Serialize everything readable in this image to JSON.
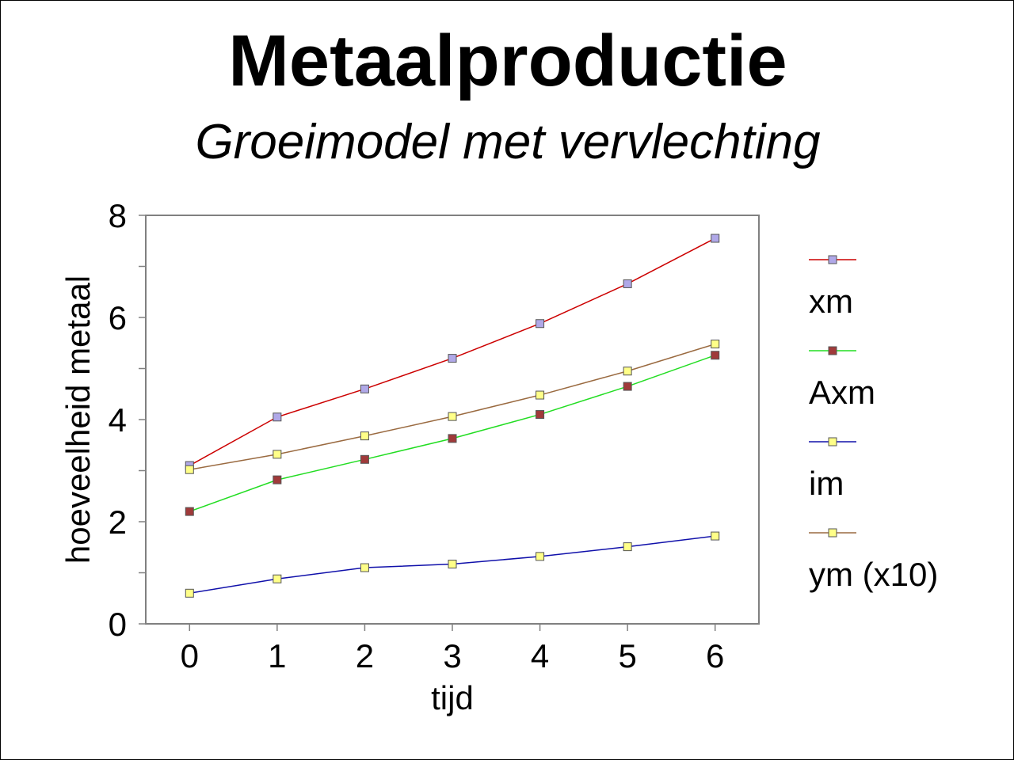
{
  "slide": {
    "title": "Metaalproductie",
    "subtitle": "Groeimodel met vervlechting"
  },
  "chart_data": {
    "type": "line",
    "xlabel": "tijd",
    "ylabel": "hoeveelheid metaal",
    "x": [
      0,
      1,
      2,
      3,
      4,
      5,
      6
    ],
    "xlim": [
      -0.5,
      6.5
    ],
    "ylim": [
      0,
      8
    ],
    "xticks": [
      "0",
      "1",
      "2",
      "3",
      "4",
      "5",
      "6"
    ],
    "yticks": [
      "0",
      "2",
      "4",
      "6",
      "8"
    ],
    "grid": false,
    "legend_position": "right",
    "series": [
      {
        "name": "xm",
        "values": [
          3.1,
          4.05,
          4.6,
          5.2,
          5.88,
          6.66,
          7.55
        ],
        "line_color": "#cc0000",
        "marker_color": "#b0a8e8"
      },
      {
        "name": "Axm",
        "values": [
          2.2,
          2.82,
          3.22,
          3.63,
          4.1,
          4.65,
          5.26
        ],
        "line_color": "#22dd22",
        "marker_color": "#a03a3a"
      },
      {
        "name": "im",
        "values": [
          0.6,
          0.88,
          1.1,
          1.17,
          1.32,
          1.51,
          1.72
        ],
        "line_color": "#1010aa",
        "marker_color": "#ffff88"
      },
      {
        "name": "ym (x10)",
        "values": [
          3.02,
          3.32,
          3.68,
          4.06,
          4.48,
          4.95,
          5.48
        ],
        "line_color": "#9a6a40",
        "marker_color": "#ffff88"
      }
    ]
  }
}
